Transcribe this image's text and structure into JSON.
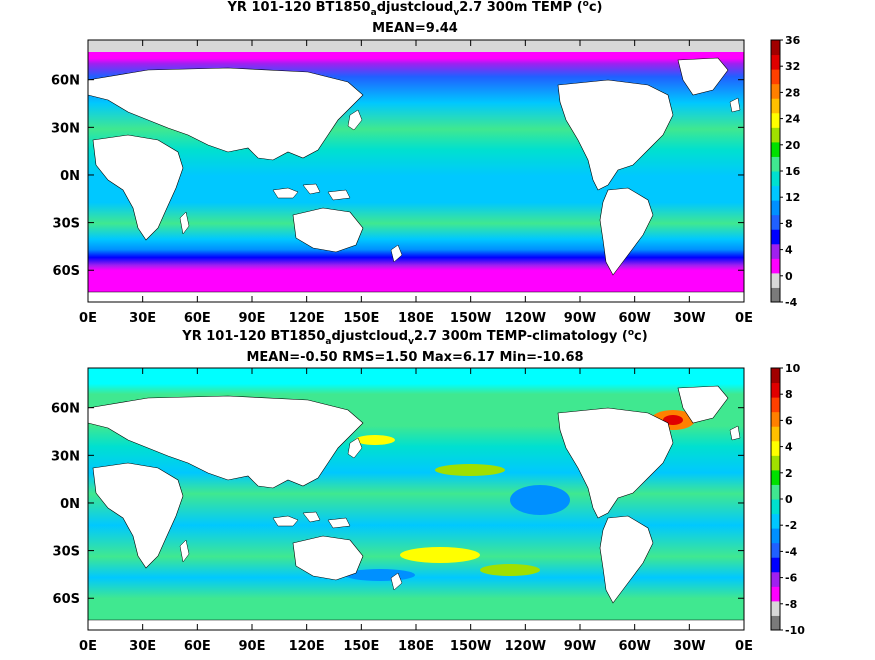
{
  "panels": [
    {
      "title_prefix": "YR 101-120 BT1850",
      "title_sub1": "a",
      "title_mid": "djustcloud",
      "title_sub2": "v",
      "title_suffix": "2.7 300m TEMP (",
      "title_sup": "o",
      "title_end": "c)",
      "stats": "MEAN=9.44",
      "colorbar_labels": [
        "36",
        "32",
        "28",
        "24",
        "20",
        "16",
        "12",
        "8",
        "4",
        "0",
        "-4"
      ],
      "colorbar_colors": [
        "#7a7a7a",
        "#d8d8d8",
        "#ff00ff",
        "#a020f0",
        "#0000ff",
        "#2060ff",
        "#0090ff",
        "#00c8ff",
        "#00e0d0",
        "#40e890",
        "#00e000",
        "#a0e000",
        "#ffff00",
        "#ffc000",
        "#ff8000",
        "#ff4000",
        "#e00000",
        "#a00000"
      ]
    },
    {
      "title_prefix": "YR 101-120 BT1850",
      "title_sub1": "a",
      "title_mid": "djustcloud",
      "title_sub2": "v",
      "title_suffix": "2.7 300m TEMP-climatology (",
      "title_sup": "o",
      "title_end": "c)",
      "stats": "MEAN=-0.50   RMS=1.50   Max=6.17   Min=-10.68",
      "colorbar_labels": [
        "10",
        "8",
        "6",
        "4",
        "2",
        "0",
        "-2",
        "-4",
        "-6",
        "-8",
        "-10"
      ],
      "colorbar_colors": [
        "#7a7a7a",
        "#d8d8d8",
        "#ff00ff",
        "#a020f0",
        "#0000ff",
        "#2060ff",
        "#0090ff",
        "#00c8ff",
        "#00e0d0",
        "#40e890",
        "#00e000",
        "#a0e000",
        "#ffff00",
        "#ffc000",
        "#ff8000",
        "#ff4000",
        "#e00000",
        "#a00000"
      ]
    }
  ],
  "axes": {
    "lon_ticks": [
      "0E",
      "30E",
      "60E",
      "90E",
      "120E",
      "150E",
      "180E",
      "150W",
      "120W",
      "90W",
      "60W",
      "30W",
      "0E"
    ],
    "lat_ticks": [
      "60N",
      "30N",
      "0N",
      "30S",
      "60S"
    ]
  }
}
